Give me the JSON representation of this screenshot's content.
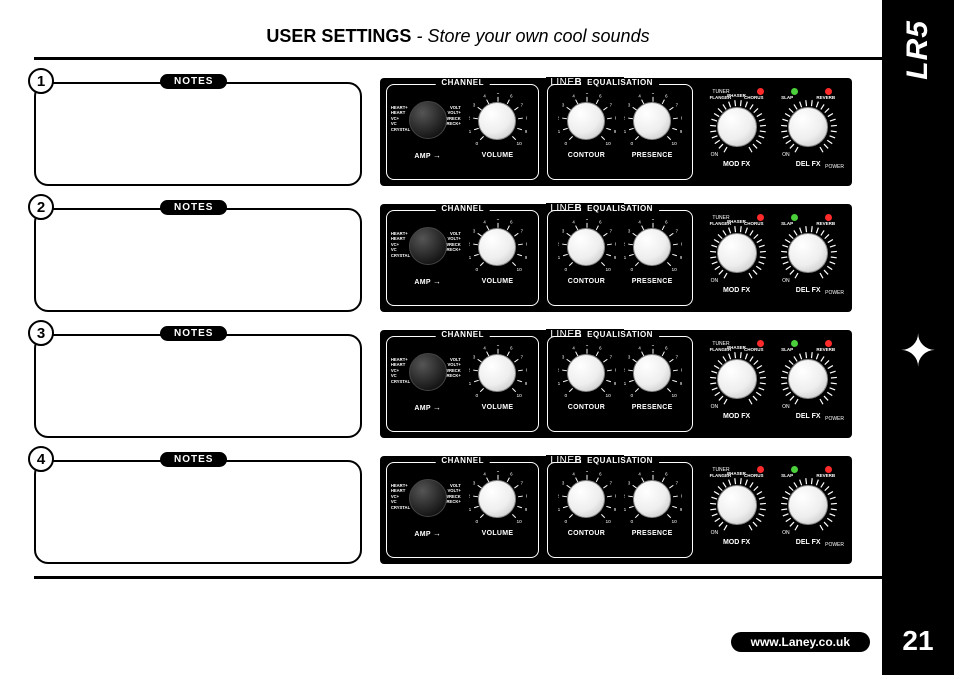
{
  "sidebar": {
    "model": "LR5",
    "page_number": "21"
  },
  "title": {
    "main": "USER SETTINGS",
    "sub": " - Store your own cool sounds"
  },
  "notes_label": "NOTES",
  "url": "www.Laney.co.uk",
  "panel": {
    "group_channel": "CHANNEL",
    "group_eq": "EQUALISATION",
    "brand_line": "LINE",
    "brand_backer": "BACKER",
    "amp_label": "AMP",
    "volume_label": "VOLUME",
    "contour_label": "CONTOUR",
    "presence_label": "PRESENCE",
    "modfx_label": "MOD FX",
    "delfx_label": "DEL FX",
    "tuner": "TUNER",
    "on": "ON",
    "power": "POWER",
    "amp_left": [
      "HEART+",
      "HEART",
      "VC+",
      "VC",
      "CRYSTAL"
    ],
    "amp_right": [
      "VOLT",
      "VOLT+",
      "WRECK",
      "WRECK+"
    ],
    "tick_min": "0",
    "tick_max": "10",
    "led_colors": {
      "tuner": "#ff2a2a",
      "green": "#4bcf3a",
      "red": "#ff2a2a"
    },
    "fx_top": {
      "flanger": "FLANGER",
      "phaser": "PHASER",
      "chorus": "CHORUS",
      "trem": "TREMOLO",
      "slap": "SLAP",
      "reverb": "REVERB"
    }
  },
  "rows": [
    "1",
    "2",
    "3",
    "4"
  ]
}
